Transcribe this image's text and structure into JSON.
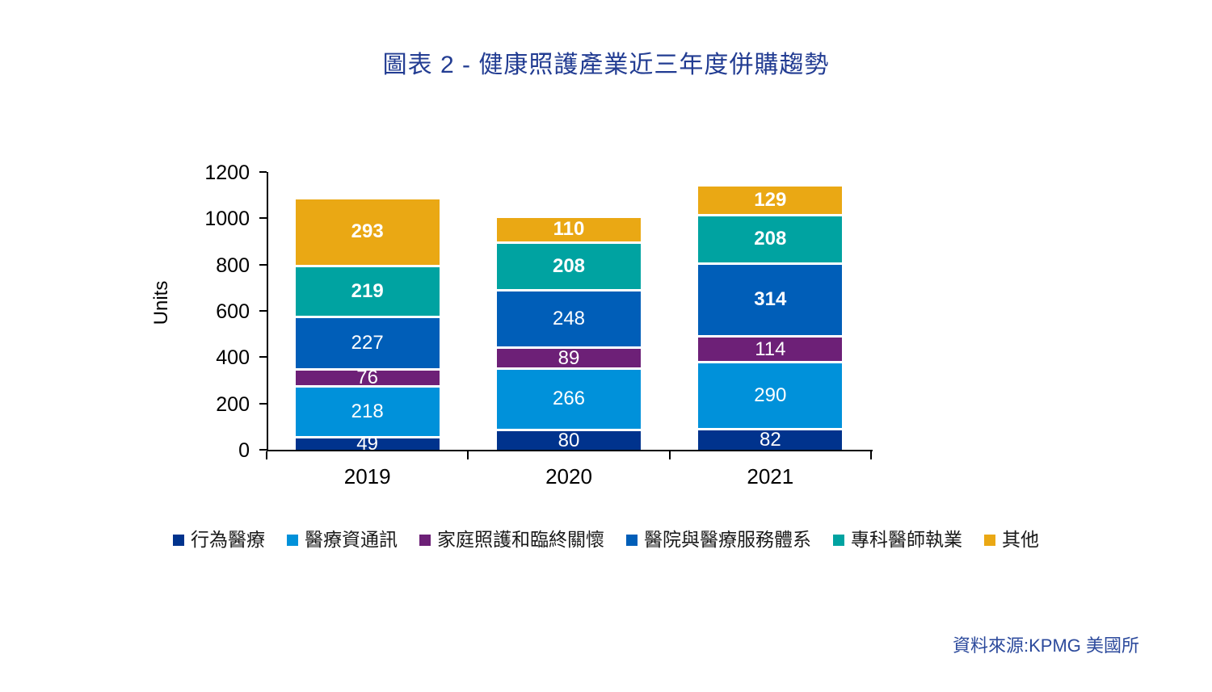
{
  "title": {
    "text": "圖表 2 - 健康照護產業近三年度併購趨勢",
    "color": "#223C92"
  },
  "source": {
    "text": "資料來源:KPMG 美國所"
  },
  "chart_data": {
    "type": "bar",
    "stacked": true,
    "title": "圖表 2 - 健康照護產業近三年度併購趨勢",
    "xlabel": "",
    "ylabel": "Units",
    "ylim": [
      0,
      1200
    ],
    "yticks": [
      0,
      200,
      400,
      600,
      800,
      1000,
      1200
    ],
    "grid": false,
    "legend_position": "bottom",
    "categories": [
      "2019",
      "2020",
      "2021"
    ],
    "series": [
      {
        "name": "行為醫療",
        "color": "#00338D",
        "values": [
          49,
          80,
          82
        ],
        "bold_labels": [
          false,
          false,
          false
        ]
      },
      {
        "name": "醫療資通訊",
        "color": "#0091DA",
        "values": [
          218,
          266,
          290
        ],
        "bold_labels": [
          false,
          false,
          false
        ]
      },
      {
        "name": "家庭照護和臨終關懷",
        "color": "#6D2077",
        "values": [
          76,
          89,
          114
        ],
        "bold_labels": [
          false,
          false,
          false
        ]
      },
      {
        "name": "醫院與醫療服務體系",
        "color": "#005EB8",
        "values": [
          227,
          248,
          314
        ],
        "bold_labels": [
          false,
          false,
          true
        ]
      },
      {
        "name": "專科醫師執業",
        "color": "#00A3A1",
        "values": [
          219,
          208,
          208
        ],
        "bold_labels": [
          true,
          true,
          true
        ]
      },
      {
        "name": "其他",
        "color": "#EAA814",
        "values": [
          293,
          110,
          129
        ],
        "bold_labels": [
          true,
          true,
          true
        ]
      }
    ],
    "totals": [
      1082,
      1001,
      1137
    ],
    "label_color": "#ffffff"
  }
}
